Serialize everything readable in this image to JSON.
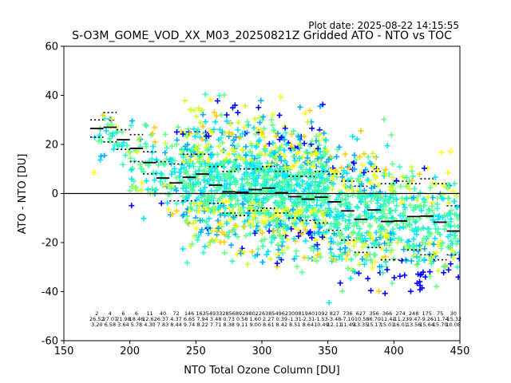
{
  "plot_date": "Plot date: 2025-08-22 14:15:55",
  "chart_data": {
    "type": "scatter",
    "title": "S-O3M_GOME_VOD_XX_M03_20250821Z Gridded ATO - NTO vs TOC",
    "xlabel": "NTO Total Ozone Column [DU]",
    "ylabel": "ATO - NTO [DU]",
    "xlim": [
      150,
      450
    ],
    "ylim": [
      -60,
      60
    ],
    "xticks": [
      150,
      200,
      250,
      300,
      350,
      400,
      450
    ],
    "yticks": [
      -60,
      -40,
      -20,
      0,
      20,
      40,
      60
    ],
    "grid": false,
    "legend": "none",
    "colors": {
      "point_palette": [
        "#0000ff",
        "#00aaff",
        "#00e5ff",
        "#33ffbb",
        "#66ff88",
        "#ccff33",
        "#ffff00",
        "#ffcc00"
      ],
      "median_bar": "#000000",
      "zero_line": "#000000"
    },
    "scatter_cloud": [
      {
        "x0": 170,
        "x1": 200,
        "yc": 22,
        "spread": 8
      },
      {
        "x0": 200,
        "x1": 240,
        "yc": 10,
        "spread": 12
      },
      {
        "x0": 240,
        "x1": 300,
        "yc": 5,
        "spread": 18
      },
      {
        "x0": 300,
        "x1": 350,
        "yc": 2,
        "spread": 18
      },
      {
        "x0": 350,
        "x1": 400,
        "yc": -8,
        "spread": 18
      },
      {
        "x0": 400,
        "x1": 450,
        "yc": -12,
        "spread": 16
      }
    ],
    "bins": [
      {
        "x": 175,
        "median": 26.5,
        "p_hi": 30,
        "p_lo": 23,
        "n": "2",
        "mean": "26.52",
        "std": "3.20"
      },
      {
        "x": 185,
        "median": 27.0,
        "p_hi": 33,
        "p_lo": 21,
        "n": "4",
        "mean": "27.07",
        "std": "6.58"
      },
      {
        "x": 195,
        "median": 21.9,
        "p_hi": 26,
        "p_lo": 18,
        "n": "6",
        "mean": "21.98",
        "std": "3.64"
      },
      {
        "x": 205,
        "median": 18.4,
        "p_hi": 24,
        "p_lo": 13,
        "n": "6",
        "mean": "18.46",
        "std": "5.78"
      },
      {
        "x": 215,
        "median": 12.6,
        "p_hi": 17,
        "p_lo": 8,
        "n": "11",
        "mean": "12.62",
        "std": "4.30"
      },
      {
        "x": 225,
        "median": 6.3,
        "p_hi": 13,
        "p_lo": 0,
        "n": "40",
        "mean": "6.37",
        "std": "7.83"
      },
      {
        "x": 235,
        "median": 4.3,
        "p_hi": 12,
        "p_lo": -3,
        "n": "72",
        "mean": "4.37",
        "std": "8.44"
      },
      {
        "x": 245,
        "median": 6.6,
        "p_hi": 16,
        "p_lo": -3,
        "n": "146",
        "mean": "6.65",
        "std": "9.74"
      },
      {
        "x": 255,
        "median": 7.9,
        "p_hi": 16,
        "p_lo": 0,
        "n": "1635",
        "mean": "7.94",
        "std": "8.22"
      },
      {
        "x": 265,
        "median": 3.4,
        "p_hi": 11,
        "p_lo": -4,
        "n": "4933",
        "mean": "3.48",
        "std": "7.71"
      },
      {
        "x": 275,
        "median": 0.7,
        "p_hi": 9,
        "p_lo": -8,
        "n": "2856",
        "mean": "0.73",
        "std": "8.38"
      },
      {
        "x": 285,
        "median": 0.5,
        "p_hi": 10,
        "p_lo": -9,
        "n": "8929",
        "mean": "0.58",
        "std": "9.11"
      },
      {
        "x": 295,
        "median": 1.6,
        "p_hi": 10,
        "p_lo": -7,
        "n": "8022",
        "mean": "1.60",
        "std": "9.00"
      },
      {
        "x": 305,
        "median": 2.2,
        "p_hi": 11,
        "p_lo": -6,
        "n": "6385",
        "mean": "2.27",
        "std": "8.61"
      },
      {
        "x": 315,
        "median": 0.3,
        "p_hi": 9,
        "p_lo": -8,
        "n": "4962",
        "mean": "0.39",
        "std": "8.42"
      },
      {
        "x": 325,
        "median": -1.3,
        "p_hi": 7,
        "p_lo": -10,
        "n": "3008",
        "mean": "-1.31",
        "std": "8.51"
      },
      {
        "x": 335,
        "median": -2.3,
        "p_hi": 7,
        "p_lo": -11,
        "n": "1940",
        "mean": "-2.31",
        "std": "8.64"
      },
      {
        "x": 345,
        "median": -1.5,
        "p_hi": 9,
        "p_lo": -12,
        "n": "1092",
        "mean": "-1.53",
        "std": "10.49"
      },
      {
        "x": 355,
        "median": -3.4,
        "p_hi": 8,
        "p_lo": -15,
        "n": "827",
        "mean": "-3.48",
        "std": "12.11"
      },
      {
        "x": 365,
        "median": -7.1,
        "p_hi": 5,
        "p_lo": -19,
        "n": "736",
        "mean": "-7.10",
        "std": "11.49"
      },
      {
        "x": 375,
        "median": -10.5,
        "p_hi": 3,
        "p_lo": -24,
        "n": "627",
        "mean": "-10.58",
        "std": "13.35"
      },
      {
        "x": 385,
        "median": -6.7,
        "p_hi": 9,
        "p_lo": -22,
        "n": "356",
        "mean": "-6.70",
        "std": "15.17"
      },
      {
        "x": 395,
        "median": -11.4,
        "p_hi": 4,
        "p_lo": -27,
        "n": "366",
        "mean": "-11.41",
        "std": "15.01"
      },
      {
        "x": 405,
        "median": -11.2,
        "p_hi": 5,
        "p_lo": -27,
        "n": "274",
        "mean": "-11.23",
        "std": "16.01"
      },
      {
        "x": 415,
        "median": -9.4,
        "p_hi": 4,
        "p_lo": -23,
        "n": "248",
        "mean": "-9.47",
        "std": "13.56"
      },
      {
        "x": 425,
        "median": -9.2,
        "p_hi": 6,
        "p_lo": -25,
        "n": "175",
        "mean": "-9.26",
        "std": "15.64"
      },
      {
        "x": 435,
        "median": -11.7,
        "p_hi": 4,
        "p_lo": -27,
        "n": "75",
        "mean": "-11.74",
        "std": "15.70"
      },
      {
        "x": 445,
        "median": -15.3,
        "p_hi": -5,
        "p_lo": -25,
        "n": "30",
        "mean": "-15.32",
        "std": "10.08"
      }
    ]
  }
}
